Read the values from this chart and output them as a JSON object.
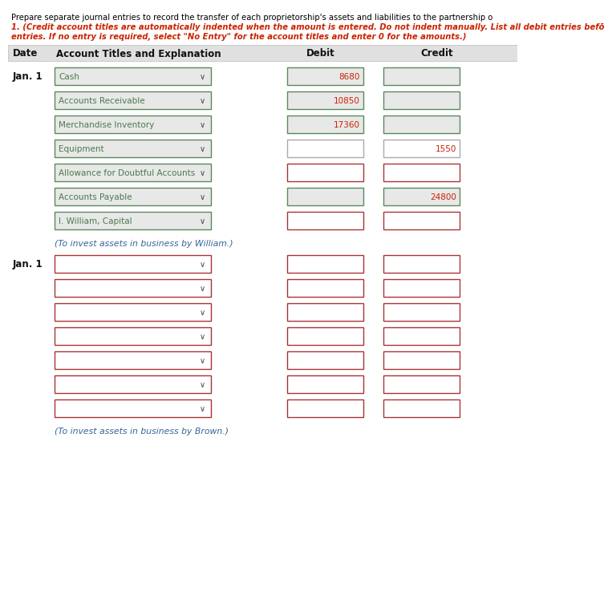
{
  "title_line1": "Prepare separate journal entries to record the transfer of each proprietorship's assets and liabilities to the partnership o",
  "title_line2": "1. (Credit account titles are automatically indented when the amount is entered. Do not indent manually. List all debit entries befō",
  "title_line3": "entries. If no entry is required, select \"No Entry\" for the account titles and enter 0 for the amounts.)",
  "header_bg": "#e0e0e0",
  "section1_date": "Jan. 1",
  "section1_rows": [
    {
      "account": "Cash",
      "debit": "8680",
      "credit": "",
      "aborder": "green",
      "dborder": "green",
      "cborder": "green",
      "dbg": "#e8e8e8",
      "cbg": "#e8e8e8"
    },
    {
      "account": "Accounts Receivable",
      "debit": "10850",
      "credit": "",
      "aborder": "green",
      "dborder": "green",
      "cborder": "green",
      "dbg": "#e8e8e8",
      "cbg": "#e8e8e8"
    },
    {
      "account": "Merchandise Inventory",
      "debit": "17360",
      "credit": "",
      "aborder": "green",
      "dborder": "green",
      "cborder": "green",
      "dbg": "#e8e8e8",
      "cbg": "#e8e8e8"
    },
    {
      "account": "Equipment",
      "debit": "",
      "credit": "1550",
      "aborder": "green",
      "dborder": "gray",
      "cborder": "gray",
      "dbg": "#ffffff",
      "cbg": "#ffffff"
    },
    {
      "account": "Allowance for Doubtful Accounts",
      "debit": "",
      "credit": "",
      "aborder": "green",
      "dborder": "red",
      "cborder": "red",
      "dbg": "#ffffff",
      "cbg": "#ffffff"
    },
    {
      "account": "Accounts Payable",
      "debit": "",
      "credit": "24800",
      "aborder": "green",
      "dborder": "green",
      "cborder": "green",
      "dbg": "#e8e8e8",
      "cbg": "#e8e8e8"
    },
    {
      "account": "I. William, Capital",
      "debit": "",
      "credit": "",
      "aborder": "green",
      "dborder": "red",
      "cborder": "red",
      "dbg": "#ffffff",
      "cbg": "#ffffff"
    }
  ],
  "section1_note": "(To invest assets in business by William.)",
  "section2_date": "Jan. 1",
  "section2_count": 7,
  "section2_note": "(To invest assets in business by Brown.)",
  "bg_color": "#ffffff",
  "text_black": "#000000",
  "text_red": "#cc2200",
  "text_blue": "#336699",
  "text_green": "#4a7a4a",
  "border_green": "#5a8a5a",
  "border_red": "#aa3333",
  "border_gray": "#aaaaaa"
}
